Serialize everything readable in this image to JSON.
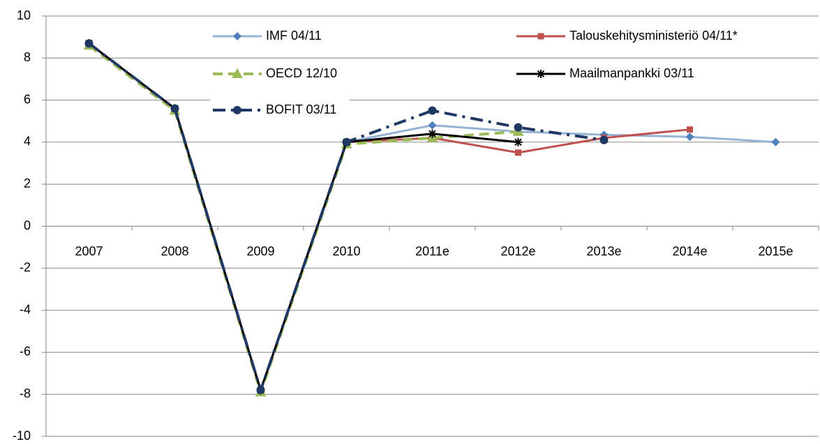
{
  "chart_data": {
    "type": "line",
    "categories": [
      "2007",
      "2008",
      "2009",
      "2010",
      "2011e",
      "2012e",
      "2013e",
      "2014e",
      "2015e"
    ],
    "series": [
      {
        "name": "IMF 04/11",
        "color": "#95b3d7",
        "marker_color": "#4f81bd",
        "marker": "diamond",
        "dash": "solid",
        "values": [
          8.7,
          5.6,
          -7.8,
          4.0,
          4.8,
          4.5,
          4.35,
          4.25,
          4.0
        ]
      },
      {
        "name": "Talouskehitysministeriö 04/11*",
        "color": "#c0504d",
        "marker_color": "#c0504d",
        "marker": "square",
        "dash": "solid",
        "values": [
          8.7,
          5.6,
          -7.8,
          4.0,
          4.2,
          3.5,
          4.2,
          4.6,
          null
        ]
      },
      {
        "name": "OECD 12/10",
        "color": "#9bbb59",
        "marker_color": "#9bbb59",
        "marker": "triangle",
        "dash": "dash",
        "values": [
          8.6,
          5.5,
          -7.9,
          3.9,
          4.2,
          4.5,
          null,
          null,
          null
        ]
      },
      {
        "name": "Maailmanpankki 03/11",
        "color": "#000000",
        "marker_color": "#000000",
        "marker": "star",
        "dash": "solid",
        "values": [
          8.7,
          5.6,
          -7.8,
          4.0,
          4.4,
          4.0,
          null,
          null,
          null
        ]
      },
      {
        "name": "BOFIT 03/11",
        "color": "#1f3864",
        "marker_color": "#1f3864",
        "marker": "circle",
        "dash": "dashdot",
        "values": [
          8.7,
          5.6,
          -7.8,
          4.0,
          5.5,
          4.7,
          4.1,
          null,
          null
        ]
      }
    ],
    "ylim": [
      -10,
      10
    ],
    "yticks": [
      -10,
      -8,
      -6,
      -4,
      -2,
      0,
      2,
      4,
      6,
      8,
      10
    ],
    "grid": true
  }
}
